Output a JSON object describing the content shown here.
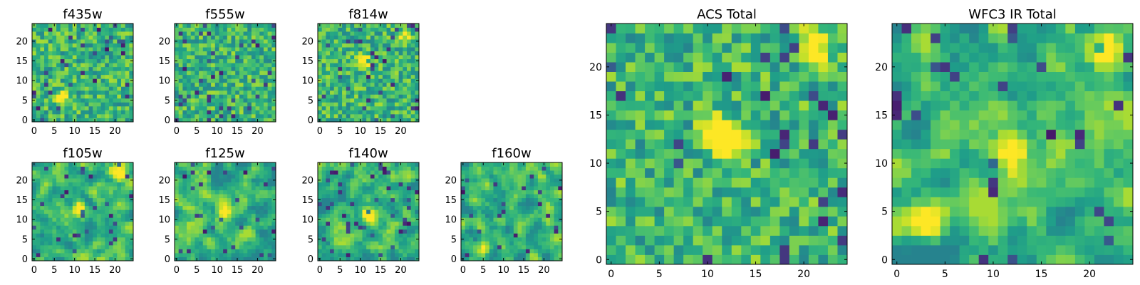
{
  "chart_data": [
    {
      "type": "heatmap",
      "title": "f435w",
      "xlim": [
        0,
        25
      ],
      "ylim": [
        0,
        25
      ],
      "xticks": [
        "0",
        "5",
        "10",
        "15",
        "20"
      ],
      "yticks": [
        "0",
        "5",
        "10",
        "15",
        "20"
      ],
      "grid_size": 25,
      "colormap": "viridis",
      "seed": 11,
      "smooth": 0,
      "bright_spots": [
        [
          7,
          6
        ]
      ]
    },
    {
      "type": "heatmap",
      "title": "f555w",
      "xlim": [
        0,
        25
      ],
      "ylim": [
        0,
        25
      ],
      "xticks": [
        "0",
        "5",
        "10",
        "15",
        "20"
      ],
      "yticks": [
        "0",
        "5",
        "10",
        "15",
        "20"
      ],
      "grid_size": 25,
      "colormap": "viridis",
      "seed": 23,
      "smooth": 0,
      "bright_spots": []
    },
    {
      "type": "heatmap",
      "title": "f814w",
      "xlim": [
        0,
        25
      ],
      "ylim": [
        0,
        25
      ],
      "xticks": [
        "0",
        "5",
        "10",
        "15",
        "20"
      ],
      "yticks": [
        "0",
        "5",
        "10",
        "15",
        "20"
      ],
      "grid_size": 25,
      "colormap": "viridis",
      "seed": 37,
      "smooth": 0,
      "bright_spots": [
        [
          21,
          21
        ],
        [
          11,
          15
        ]
      ]
    },
    {
      "type": "heatmap",
      "title": "f105w",
      "xlim": [
        0,
        25
      ],
      "ylim": [
        0,
        25
      ],
      "xticks": [
        "0",
        "5",
        "10",
        "15",
        "20"
      ],
      "yticks": [
        "0",
        "5",
        "10",
        "15",
        "20"
      ],
      "grid_size": 25,
      "colormap": "viridis",
      "seed": 41,
      "smooth": 1,
      "bright_spots": [
        [
          21,
          22
        ],
        [
          11,
          13
        ]
      ]
    },
    {
      "type": "heatmap",
      "title": "f125w",
      "xlim": [
        0,
        25
      ],
      "ylim": [
        0,
        25
      ],
      "xticks": [
        "0",
        "5",
        "10",
        "15",
        "20"
      ],
      "yticks": [
        "0",
        "5",
        "10",
        "15",
        "20"
      ],
      "grid_size": 25,
      "colormap": "viridis",
      "seed": 53,
      "smooth": 1,
      "bright_spots": [
        [
          12,
          12
        ]
      ]
    },
    {
      "type": "heatmap",
      "title": "f140w",
      "xlim": [
        0,
        25
      ],
      "ylim": [
        0,
        25
      ],
      "xticks": [
        "0",
        "5",
        "10",
        "15",
        "20"
      ],
      "yticks": [
        "0",
        "5",
        "10",
        "15",
        "20"
      ],
      "grid_size": 25,
      "colormap": "viridis",
      "seed": 67,
      "smooth": 1,
      "bright_spots": [
        [
          12,
          11
        ]
      ]
    },
    {
      "type": "heatmap",
      "title": "f160w",
      "xlim": [
        0,
        25
      ],
      "ylim": [
        0,
        25
      ],
      "xticks": [
        "0",
        "5",
        "10",
        "15",
        "20"
      ],
      "yticks": [
        "0",
        "5",
        "10",
        "15",
        "20"
      ],
      "grid_size": 25,
      "colormap": "viridis",
      "seed": 79,
      "smooth": 1,
      "bright_spots": [
        [
          5,
          3
        ]
      ]
    },
    {
      "type": "heatmap",
      "title": "ACS Total",
      "xlim": [
        0,
        25
      ],
      "ylim": [
        0,
        25
      ],
      "xticks": [
        "0",
        "5",
        "10",
        "15",
        "20"
      ],
      "yticks": [
        "0",
        "5",
        "10",
        "15",
        "20"
      ],
      "grid_size": 25,
      "colormap": "viridis",
      "seed": 89,
      "smooth": 0,
      "bright_spots": [
        [
          21,
          22
        ],
        [
          13,
          12
        ],
        [
          11,
          13
        ]
      ]
    },
    {
      "type": "heatmap",
      "title": "WFC3 IR Total",
      "xlim": [
        0,
        25
      ],
      "ylim": [
        0,
        25
      ],
      "xticks": [
        "0",
        "5",
        "10",
        "15",
        "20"
      ],
      "yticks": [
        "0",
        "5",
        "10",
        "15",
        "20"
      ],
      "grid_size": 25,
      "colormap": "viridis",
      "seed": 97,
      "smooth": 1,
      "bright_spots": [
        [
          21,
          22
        ],
        [
          12,
          11
        ],
        [
          3,
          4
        ]
      ]
    }
  ]
}
